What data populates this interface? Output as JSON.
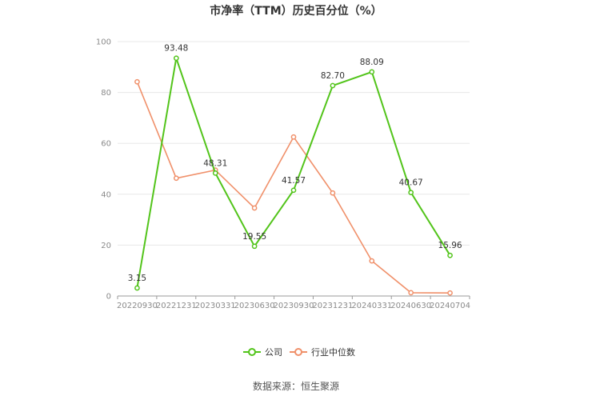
{
  "chart_data": {
    "type": "line",
    "title": "市净率（TTM）历史百分位（%）",
    "categories": [
      "20220930",
      "20221231",
      "20230331",
      "20230630",
      "20230930",
      "20231231",
      "20240331",
      "20240630",
      "20240704"
    ],
    "ylim": [
      0,
      100
    ],
    "yticks": [
      0,
      20,
      40,
      60,
      80,
      100
    ],
    "grid": true,
    "legend_position": "bottom",
    "series": [
      {
        "name": "公司",
        "color": "#52c41a",
        "values": [
          3.15,
          93.48,
          48.31,
          19.55,
          41.57,
          82.7,
          88.09,
          40.67,
          15.96
        ],
        "labels": [
          "3.15",
          "93.48",
          "48.31",
          "19.55",
          "41.57",
          "82.70",
          "88.09",
          "40.67",
          "15.96"
        ],
        "show_labels": true
      },
      {
        "name": "行业中位数",
        "color": "#f0906a",
        "values": [
          84.2,
          46.3,
          49.5,
          34.6,
          62.5,
          40.5,
          13.8,
          1.3,
          1.2
        ],
        "show_labels": false
      }
    ],
    "source": "数据来源：恒生聚源"
  }
}
